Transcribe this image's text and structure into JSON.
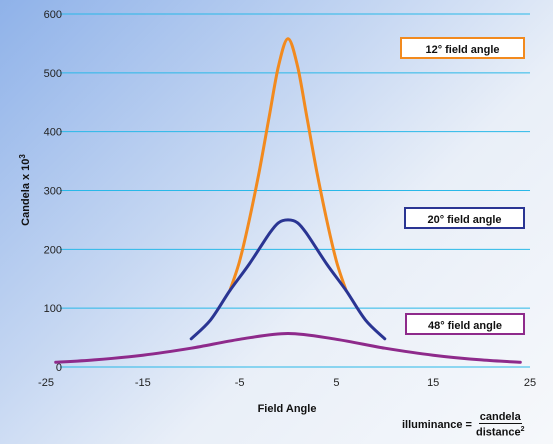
{
  "chart_data": {
    "type": "line",
    "xlabel": "Field Angle",
    "ylabel": "Candela x 10",
    "ylabel_superscript": "3",
    "xlim": [
      -25,
      25
    ],
    "ylim": [
      0,
      600
    ],
    "x_ticks": [
      "-25",
      "-15",
      "-5",
      "5",
      "15",
      "25"
    ],
    "x_tick_values": [
      -25,
      -15,
      -5,
      5,
      15,
      25
    ],
    "y_ticks": [
      "0",
      "100",
      "200",
      "300",
      "400",
      "500",
      "600"
    ],
    "y_tick_values": [
      0,
      100,
      200,
      300,
      400,
      500,
      600
    ],
    "grid": "horizontal",
    "series": [
      {
        "name": "12° field angle",
        "color": "#f28a1e",
        "x": [
          -6,
          -5,
          -4,
          -3,
          -2,
          -1,
          0,
          1,
          2,
          3,
          4,
          5,
          6
        ],
        "y": [
          130,
          180,
          250,
          330,
          420,
          510,
          558,
          510,
          420,
          330,
          250,
          180,
          130
        ]
      },
      {
        "name": "20° field angle",
        "color": "#2a3593",
        "x": [
          -10,
          -8,
          -6,
          -4,
          -2,
          -1,
          0,
          1,
          2,
          4,
          6,
          8,
          10
        ],
        "y": [
          48,
          80,
          130,
          175,
          225,
          245,
          250,
          245,
          225,
          175,
          130,
          80,
          48
        ]
      },
      {
        "name": "48° field angle",
        "color": "#8e2a8b",
        "x": [
          -24,
          -20,
          -15,
          -10,
          -5,
          0,
          5,
          10,
          15,
          20,
          24
        ],
        "y": [
          8,
          12,
          20,
          32,
          47,
          57,
          47,
          32,
          20,
          12,
          8
        ]
      }
    ]
  },
  "colors": {
    "grid": "#29b8e8",
    "background_start": "#8fb2e9",
    "background_end": "#f6f8fb"
  },
  "legend": {
    "items": [
      {
        "label": "12° field angle",
        "border": "#f28a1e"
      },
      {
        "label": "20° field angle",
        "border": "#2a3593"
      },
      {
        "label": "48° field angle",
        "border": "#8e2a8b"
      }
    ]
  },
  "formula": {
    "lhs": "illuminance",
    "eq": "=",
    "numerator": "candela",
    "denominator": "distance",
    "denominator_superscript": "2"
  }
}
